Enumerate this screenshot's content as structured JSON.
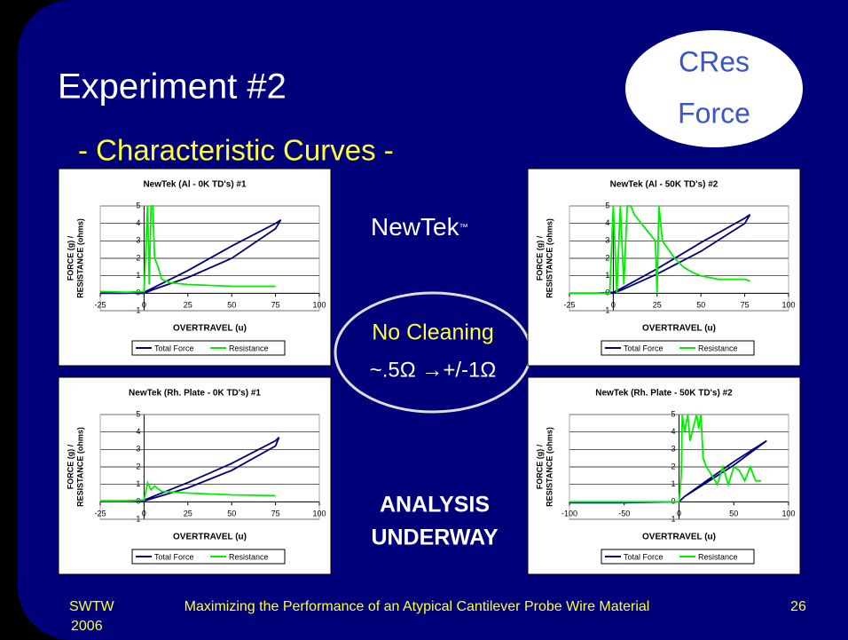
{
  "slide": {
    "title": "Experiment #2",
    "subtitle": "- Characteristic Curves -",
    "badge": [
      "CRes",
      "Force"
    ],
    "brand": "NewTek",
    "brand_mark": "™",
    "note": [
      "No Cleaning",
      "~.5Ω →+/-1Ω"
    ],
    "status": [
      "ANALYSIS",
      "UNDERWAY"
    ],
    "footer_left": [
      "SWTW",
      "2006"
    ],
    "footer_center": "Maximizing the Performance of an Atypical Cantilever Probe Wire Material",
    "page": "26"
  },
  "chart_data": [
    {
      "type": "line",
      "title": "NewTek (Al - 0K TD's) #1",
      "xlabel": "OVERTRAVEL (u)",
      "ylabel": [
        "FORCE (g) /",
        "RESISTANCE (ohms)"
      ],
      "xlim": [
        -25,
        100
      ],
      "xticks": [
        -25,
        0,
        25,
        50,
        75,
        100
      ],
      "ylim": [
        -1,
        5
      ],
      "yticks": [
        -1,
        0,
        1,
        2,
        3,
        4,
        5
      ],
      "grid": true,
      "legend": "bottom",
      "series": [
        {
          "name": "Total Force",
          "color": "#000080",
          "x": [
            -25,
            -10,
            0,
            5,
            25,
            50,
            75,
            78,
            75,
            50,
            25,
            5,
            0,
            -5
          ],
          "values": [
            0,
            0,
            0.05,
            0.3,
            1.3,
            2.7,
            4,
            4.2,
            3.7,
            2,
            0.9,
            0.2,
            0,
            0
          ]
        },
        {
          "name": "Resistance",
          "color": "#00ee00",
          "x": [
            -25,
            -10,
            0,
            2,
            3,
            4,
            5,
            6,
            8,
            10,
            15,
            25,
            50,
            75
          ],
          "values": [
            0.1,
            0.05,
            0.1,
            5,
            0.5,
            5,
            5,
            2,
            1.5,
            0.8,
            0.6,
            0.5,
            0.4,
            0.4
          ]
        }
      ]
    },
    {
      "type": "line",
      "title": "NewTek (Al - 50K TD's) #2",
      "xlabel": "OVERTRAVEL (u)",
      "ylabel": [
        "FORCE (g) /",
        "RESISTANCE (ohms)"
      ],
      "xlim": [
        -25,
        100
      ],
      "xticks": [
        -25,
        0,
        25,
        50,
        75,
        100
      ],
      "ylim": [
        -1,
        5
      ],
      "yticks": [
        -1,
        0,
        1,
        2,
        3,
        4,
        5
      ],
      "grid": true,
      "legend": "bottom",
      "series": [
        {
          "name": "Total Force",
          "color": "#000080",
          "x": [
            -25,
            -10,
            0,
            5,
            25,
            50,
            75,
            78,
            75,
            50,
            25,
            5,
            0,
            -5
          ],
          "values": [
            0,
            0,
            0.05,
            0.3,
            1.4,
            2.9,
            4.3,
            4.5,
            4,
            2.4,
            1.1,
            0.2,
            0,
            0
          ]
        },
        {
          "name": "Resistance",
          "color": "#00ee00",
          "x": [
            -25,
            -5,
            -2,
            0,
            2,
            4,
            6,
            8,
            10,
            12,
            20,
            24,
            25,
            26,
            28,
            35,
            40,
            45,
            50,
            60,
            75,
            78
          ],
          "values": [
            0,
            0,
            0,
            5,
            0,
            5,
            0.5,
            5,
            5,
            4.5,
            3.5,
            3,
            0,
            5,
            3,
            2,
            1.5,
            1.2,
            1,
            0.8,
            0.8,
            0.7
          ]
        }
      ]
    },
    {
      "type": "line",
      "title": "NewTek (Rh. Plate - 0K TD's) #1",
      "xlabel": "OVERTRAVEL (u)",
      "ylabel": [
        "FORCE (g) /",
        "RESISTANCE (ohms)"
      ],
      "xlim": [
        -25,
        100
      ],
      "xticks": [
        -25,
        0,
        25,
        50,
        75,
        100
      ],
      "ylim": [
        -1,
        5
      ],
      "yticks": [
        -1,
        0,
        1,
        2,
        3,
        4,
        5
      ],
      "grid": true,
      "legend": "bottom",
      "series": [
        {
          "name": "Total Force",
          "color": "#000080",
          "x": [
            -25,
            -10,
            0,
            5,
            25,
            50,
            75,
            77,
            75,
            50,
            25,
            5,
            0,
            -5
          ],
          "values": [
            0.05,
            0.05,
            0.1,
            0.3,
            1.1,
            2.2,
            3.5,
            3.7,
            3.2,
            1.8,
            0.8,
            0.2,
            0.05,
            0.05
          ]
        },
        {
          "name": "Resistance",
          "color": "#00ee00",
          "x": [
            -25,
            -10,
            0,
            2,
            4,
            6,
            10,
            25,
            50,
            75
          ],
          "values": [
            0.05,
            0.05,
            0.1,
            1.1,
            0.7,
            0.9,
            0.6,
            0.5,
            0.4,
            0.35
          ]
        }
      ]
    },
    {
      "type": "line",
      "title": "NewTek (Rh. Plate - 50K TD's) #2",
      "xlabel": "OVERTRAVEL (u)",
      "ylabel": [
        "FORCE (g) /",
        "RESISTANCE (ohms)"
      ],
      "xlim": [
        -100,
        100
      ],
      "xticks": [
        -100,
        -50,
        0,
        50,
        100
      ],
      "ylim": [
        -1,
        5
      ],
      "yticks": [
        -1,
        0,
        1,
        2,
        3,
        4,
        5
      ],
      "grid": true,
      "legend": "bottom",
      "series": [
        {
          "name": "Total Force",
          "color": "#000080",
          "x": [
            -100,
            -50,
            0,
            5,
            25,
            50,
            80,
            50,
            25,
            5,
            0,
            -50
          ],
          "values": [
            -0.05,
            -0.05,
            0,
            0.3,
            1.1,
            2.1,
            3.5,
            2.3,
            1.2,
            0.3,
            0,
            -0.05
          ]
        },
        {
          "name": "Resistance",
          "color": "#00ee00",
          "x": [
            -100,
            -50,
            0,
            2,
            3,
            5,
            8,
            10,
            14,
            16,
            18,
            20,
            22,
            25,
            30,
            35,
            40,
            45,
            50,
            55,
            60,
            65,
            70,
            75
          ],
          "values": [
            0,
            0,
            0,
            1.5,
            5,
            4,
            5,
            3.5,
            4.5,
            5,
            4.2,
            5,
            2.5,
            2,
            1.5,
            1,
            2,
            1,
            2,
            1.8,
            1.2,
            2,
            1.2,
            1.2
          ]
        }
      ]
    }
  ]
}
